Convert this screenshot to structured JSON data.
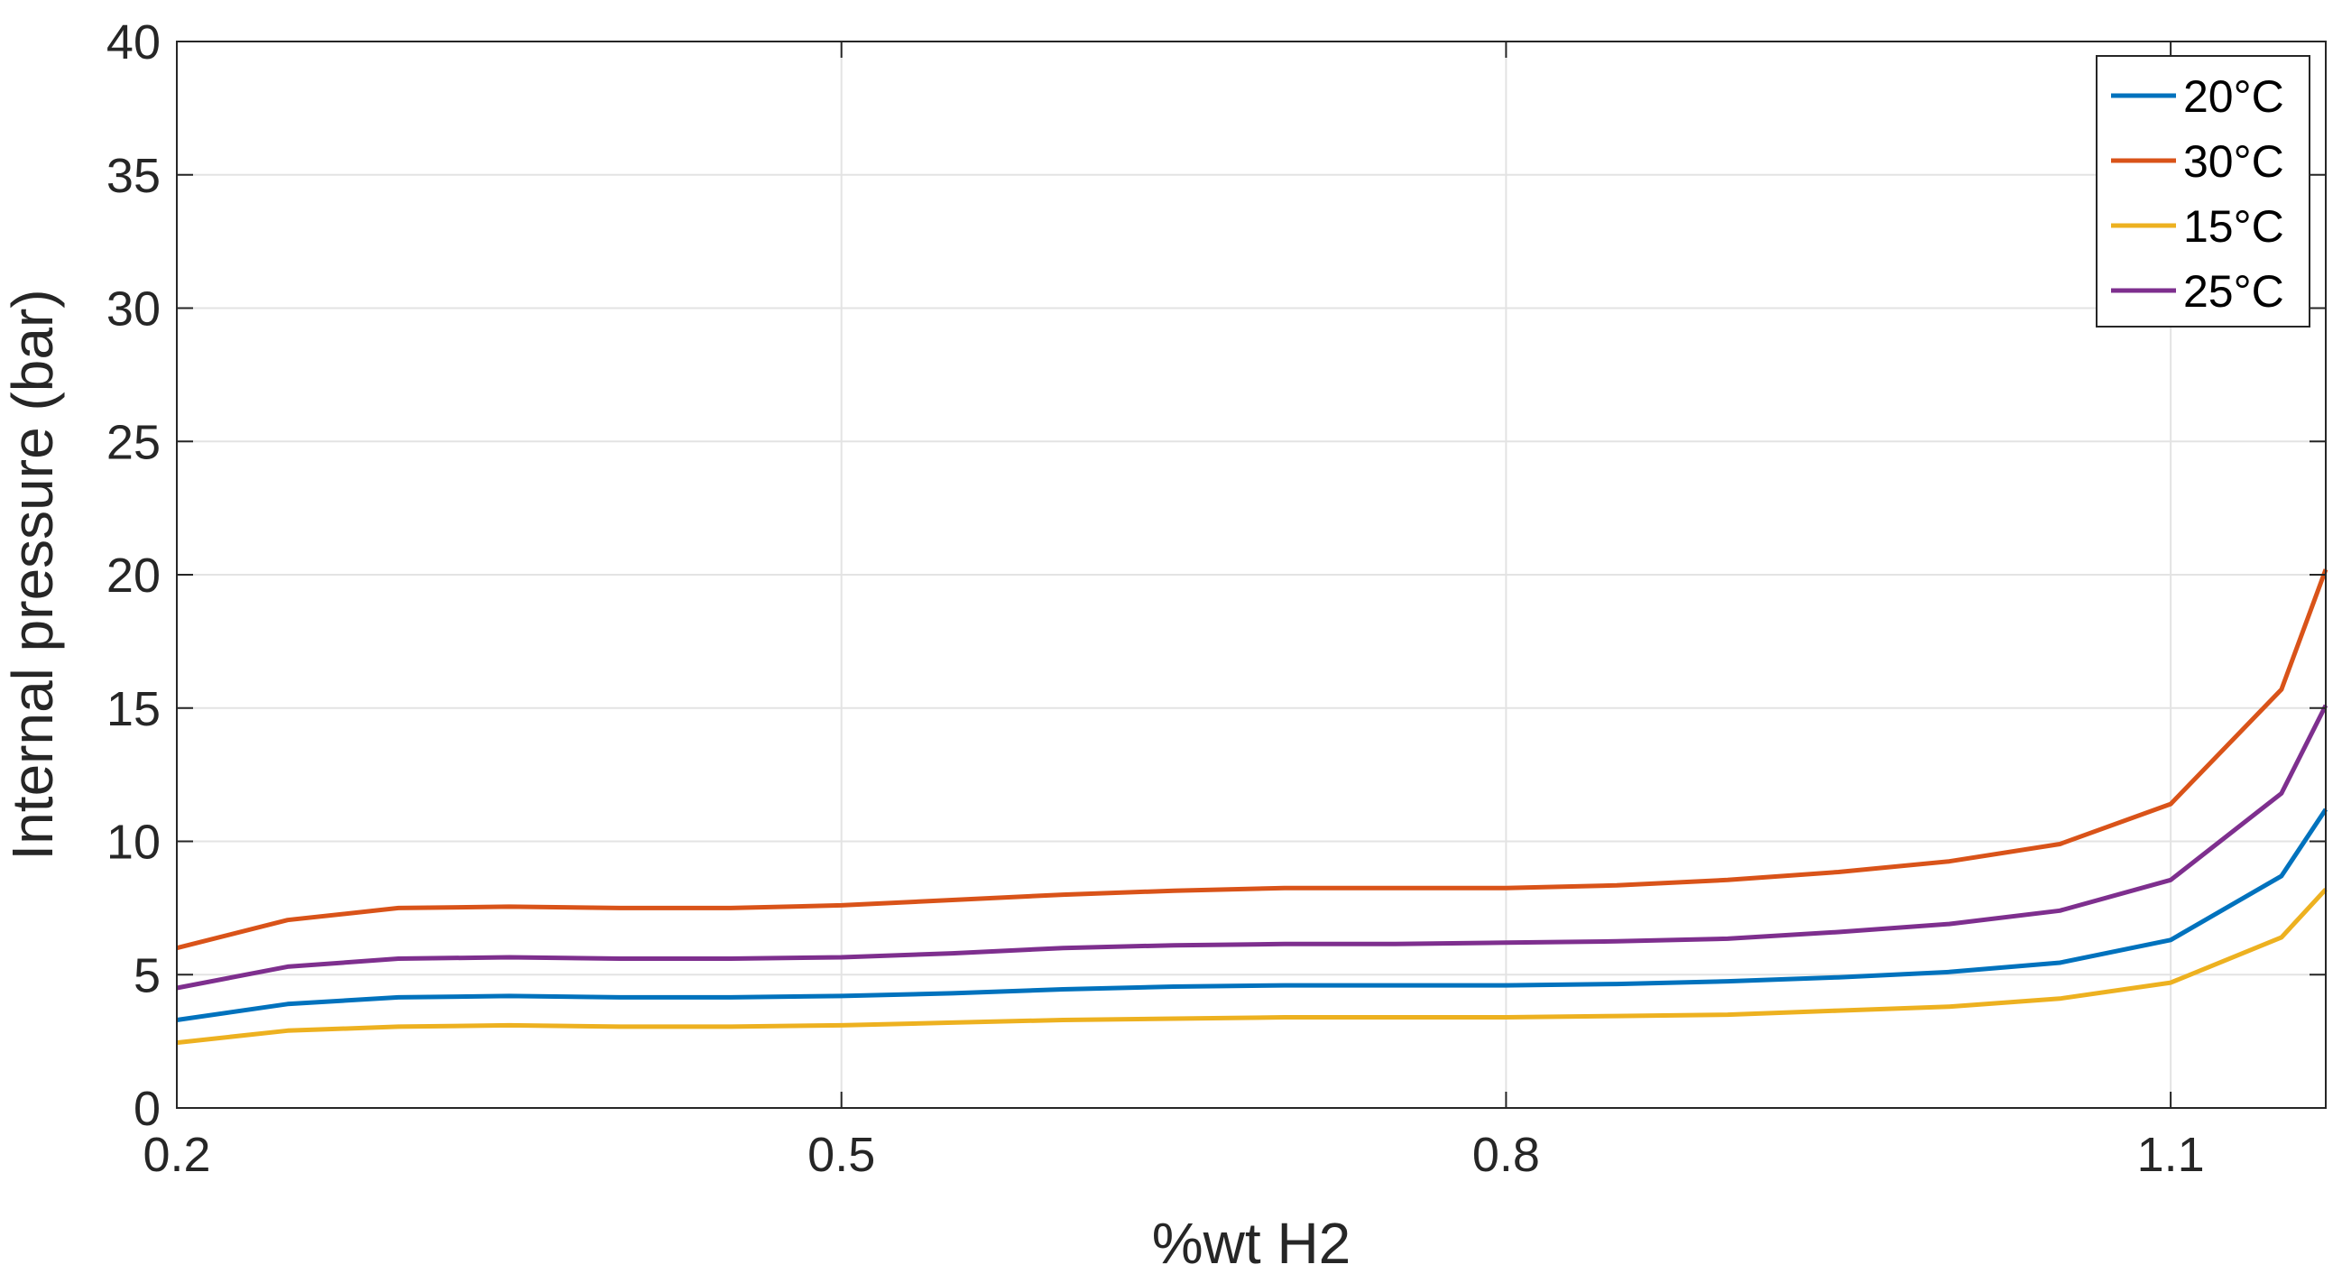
{
  "chart_data": {
    "type": "line",
    "xlabel": "%wt H2",
    "ylabel": "Internal pressure (bar)",
    "xlim": [
      0.2,
      1.17
    ],
    "ylim": [
      0,
      40
    ],
    "xticks": [
      0.2,
      0.5,
      0.8,
      1.1
    ],
    "xtick_labels": [
      "0.2",
      "0.5",
      "0.8",
      "1.1"
    ],
    "yticks": [
      0,
      5,
      10,
      15,
      20,
      25,
      30,
      35,
      40
    ],
    "ytick_labels": [
      "0",
      "5",
      "10",
      "15",
      "20",
      "25",
      "30",
      "35",
      "40"
    ],
    "grid": true,
    "legend_position": "top-right",
    "x": [
      0.2,
      0.25,
      0.3,
      0.35,
      0.4,
      0.45,
      0.5,
      0.55,
      0.6,
      0.65,
      0.7,
      0.75,
      0.8,
      0.85,
      0.9,
      0.95,
      1.0,
      1.05,
      1.1,
      1.15,
      1.17
    ],
    "series": [
      {
        "name": "20°C",
        "color": "#0072BD",
        "values": [
          3.3,
          3.9,
          4.15,
          4.2,
          4.15,
          4.15,
          4.2,
          4.3,
          4.45,
          4.55,
          4.6,
          4.6,
          4.6,
          4.65,
          4.75,
          4.9,
          5.1,
          5.45,
          6.3,
          8.7,
          11.2
        ]
      },
      {
        "name": "30°C",
        "color": "#D95319",
        "values": [
          6.0,
          7.05,
          7.5,
          7.55,
          7.5,
          7.5,
          7.6,
          7.8,
          8.0,
          8.15,
          8.25,
          8.25,
          8.25,
          8.35,
          8.55,
          8.85,
          9.25,
          9.9,
          11.4,
          15.7,
          20.2
        ]
      },
      {
        "name": "15°C",
        "color": "#EDB120",
        "values": [
          2.45,
          2.9,
          3.05,
          3.1,
          3.05,
          3.05,
          3.1,
          3.2,
          3.3,
          3.35,
          3.4,
          3.4,
          3.4,
          3.45,
          3.5,
          3.65,
          3.8,
          4.1,
          4.7,
          6.4,
          8.2
        ]
      },
      {
        "name": "25°C",
        "color": "#7E2F8E",
        "values": [
          4.5,
          5.3,
          5.6,
          5.65,
          5.6,
          5.6,
          5.65,
          5.8,
          6.0,
          6.1,
          6.15,
          6.15,
          6.2,
          6.25,
          6.35,
          6.6,
          6.9,
          7.4,
          8.55,
          11.8,
          15.1
        ]
      }
    ]
  }
}
